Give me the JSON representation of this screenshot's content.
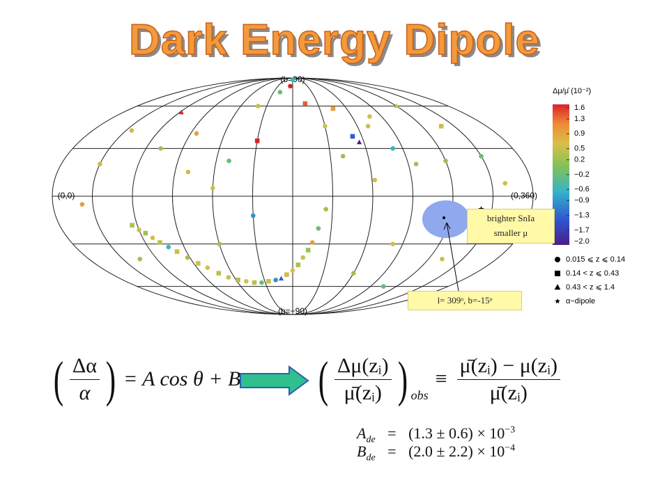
{
  "title": "Dark Energy Dipole",
  "map": {
    "labels": {
      "north": "(b=90)",
      "west": "(0,0)",
      "east": "(0,360)",
      "south": "(b=−90)"
    },
    "points": [
      {
        "l": 56,
        "b": -18,
        "z_bin": 1,
        "value": 0.3
      },
      {
        "l": 60,
        "b": -21,
        "z_bin": 0,
        "value": 0.5
      },
      {
        "l": 64,
        "b": -23,
        "z_bin": 1,
        "value": 0.2
      },
      {
        "l": 68,
        "b": -26,
        "z_bin": 0,
        "value": 0.6
      },
      {
        "l": 72,
        "b": -29,
        "z_bin": 1,
        "value": 0.4
      },
      {
        "l": 77,
        "b": -32,
        "z_bin": 0,
        "value": -0.6
      },
      {
        "l": 82,
        "b": -35,
        "z_bin": 1,
        "value": 0.5
      },
      {
        "l": 88,
        "b": -39,
        "z_bin": 0,
        "value": 0.2
      },
      {
        "l": 94,
        "b": -43,
        "z_bin": 1,
        "value": 0.5
      },
      {
        "l": 100,
        "b": -46,
        "z_bin": 0,
        "value": 0.6
      },
      {
        "l": 107,
        "b": -50,
        "z_bin": 1,
        "value": 0.4
      },
      {
        "l": 114,
        "b": -53,
        "z_bin": 0,
        "value": 0.5
      },
      {
        "l": 122,
        "b": -55,
        "z_bin": 1,
        "value": 0.3
      },
      {
        "l": 130,
        "b": -56,
        "z_bin": 0,
        "value": 0.6
      },
      {
        "l": 138,
        "b": -57,
        "z_bin": 1,
        "value": 0.4
      },
      {
        "l": 146,
        "b": -57,
        "z_bin": 0,
        "value": -0.2
      },
      {
        "l": 154,
        "b": -56,
        "z_bin": 1,
        "value": 0.5
      },
      {
        "l": 162,
        "b": -55,
        "z_bin": 0,
        "value": -0.9
      },
      {
        "l": 168,
        "b": -54,
        "z_bin": 2,
        "value": -1.3
      },
      {
        "l": 174,
        "b": -51,
        "z_bin": 1,
        "value": 0.5
      },
      {
        "l": 180,
        "b": -48,
        "z_bin": 0,
        "value": 0.6
      },
      {
        "l": 185,
        "b": -44,
        "z_bin": 1,
        "value": 0.3
      },
      {
        "l": 189,
        "b": -39,
        "z_bin": 0,
        "value": 0.5
      },
      {
        "l": 193,
        "b": -34,
        "z_bin": 1,
        "value": 0.2
      },
      {
        "l": 196,
        "b": -29,
        "z_bin": 0,
        "value": 0.9
      },
      {
        "l": 200,
        "b": -20,
        "z_bin": 0,
        "value": -0.2
      },
      {
        "l": 140,
        "b": 60,
        "z_bin": 0,
        "value": 0.5
      },
      {
        "l": 160,
        "b": 72,
        "z_bin": 0,
        "value": -0.2
      },
      {
        "l": 175,
        "b": 78,
        "z_bin": 0,
        "value": 1.6
      },
      {
        "l": 195,
        "b": 62,
        "z_bin": 1,
        "value": 1.3
      },
      {
        "l": 210,
        "b": 45,
        "z_bin": 0,
        "value": 0.5
      },
      {
        "l": 220,
        "b": 25,
        "z_bin": 0,
        "value": 0.2
      },
      {
        "l": 232,
        "b": 38,
        "z_bin": 1,
        "value": -1.3
      },
      {
        "l": 236,
        "b": 34,
        "z_bin": 2,
        "value": -2.0
      },
      {
        "l": 250,
        "b": 45,
        "z_bin": 0,
        "value": 0.5
      },
      {
        "l": 262,
        "b": 30,
        "z_bin": 0,
        "value": -0.6
      },
      {
        "l": 276,
        "b": 20,
        "z_bin": 0,
        "value": 0.2
      },
      {
        "l": 300,
        "b": 60,
        "z_bin": 2,
        "value": 0.5
      },
      {
        "l": 95,
        "b": 40,
        "z_bin": 0,
        "value": 0.9
      },
      {
        "l": 100,
        "b": 15,
        "z_bin": 0,
        "value": 0.5
      },
      {
        "l": 72,
        "b": 30,
        "z_bin": 0,
        "value": 0.2
      },
      {
        "l": 62,
        "b": 55,
        "z_bin": 2,
        "value": 1.6
      },
      {
        "l": 130,
        "b": 22,
        "z_bin": 0,
        "value": -0.2
      },
      {
        "l": 120,
        "b": 5,
        "z_bin": 0,
        "value": 0.5
      },
      {
        "l": 150,
        "b": -12,
        "z_bin": 0,
        "value": -0.9
      },
      {
        "l": 205,
        "b": -8,
        "z_bin": 0,
        "value": 0.2
      },
      {
        "l": 225,
        "b": 58,
        "z_bin": 1,
        "value": 0.9
      },
      {
        "l": 242,
        "b": 10,
        "z_bin": 0,
        "value": 0.5
      },
      {
        "l": 300,
        "b": 22,
        "z_bin": 0,
        "value": 0.2
      },
      {
        "l": 318,
        "b": 45,
        "z_bin": 1,
        "value": 0.5
      },
      {
        "l": 330,
        "b": 25,
        "z_bin": 0,
        "value": -0.2
      },
      {
        "l": 340,
        "b": 8,
        "z_bin": 0,
        "value": 0.5
      },
      {
        "l": 30,
        "b": 20,
        "z_bin": 0,
        "value": 0.5
      },
      {
        "l": 22,
        "b": -5,
        "z_bin": 0,
        "value": 0.9
      },
      {
        "l": 45,
        "b": -40,
        "z_bin": 0,
        "value": 0.2
      },
      {
        "l": 262,
        "b": -30,
        "z_bin": 0,
        "value": 0.5
      },
      {
        "l": 285,
        "b": -60,
        "z_bin": 0,
        "value": -0.2
      },
      {
        "l": 312,
        "b": -40,
        "z_bin": 0,
        "value": 0.5
      },
      {
        "l": 240,
        "b": -50,
        "z_bin": 0,
        "value": 0.2
      },
      {
        "l": 180,
        "b": 86,
        "z_bin": 0,
        "value": -0.6
      },
      {
        "l": 258,
        "b": 52,
        "z_bin": 0,
        "value": 0.6
      },
      {
        "l": 150,
        "b": 35,
        "z_bin": 1,
        "value": 1.6
      },
      {
        "l": 35,
        "b": 42,
        "z_bin": 0,
        "value": 0.5
      },
      {
        "l": 120,
        "b": -30,
        "z_bin": 0,
        "value": 0.2
      }
    ],
    "dipole": {
      "l": 322,
      "b": -8
    }
  },
  "colorbar": {
    "label": "Δμ/μ̄ (10⁻²)",
    "ticks": [
      1.6,
      1.3,
      0.9,
      0.5,
      0.2,
      {
        "value": -0.2,
        "label": "−0.2"
      },
      {
        "value": -0.6,
        "label": "−0.6"
      },
      {
        "value": -0.9,
        "label": "−0.9"
      },
      {
        "value": -1.3,
        "label": "−1.3"
      },
      {
        "value": -1.7,
        "label": "−1.7"
      },
      {
        "value": -2.0,
        "label": "−2.0"
      }
    ]
  },
  "legend": [
    {
      "marker": "circle",
      "label": "0.015 ⩽  z ⩽ 0.14"
    },
    {
      "marker": "square",
      "label": "0.14 < z ⩽ 0.43"
    },
    {
      "marker": "triangle",
      "label": "0.43 < z ⩽ 1.4"
    },
    {
      "marker": "star",
      "label": "α−dipole"
    }
  ],
  "callout": [
    "brighter SnIa",
    "smaller μ"
  ],
  "position_label": "l= 309ᵒ, b=-15ᵒ",
  "equations": {
    "left": {
      "numerator": "Δα",
      "denominator": "α",
      "rhs": "= A cos θ + B"
    },
    "right": {
      "numerator": "Δμ(zᵢ)",
      "denominator": "μ̄(zᵢ)",
      "subscript": "obs",
      "equiv": "≡",
      "rhs_numerator": "μ̄(zᵢ) − μ(zᵢ)",
      "rhs_denominator": "μ̄(zᵢ)"
    },
    "results": [
      {
        "symbol": "A",
        "sub": "de",
        "eq": "=",
        "value": "(1.3 ± 0.6) × 10",
        "exp": "−3"
      },
      {
        "symbol": "B",
        "sub": "de",
        "eq": "=",
        "value": "(2.0 ± 2.2) × 10",
        "exp": "−4"
      }
    ]
  }
}
